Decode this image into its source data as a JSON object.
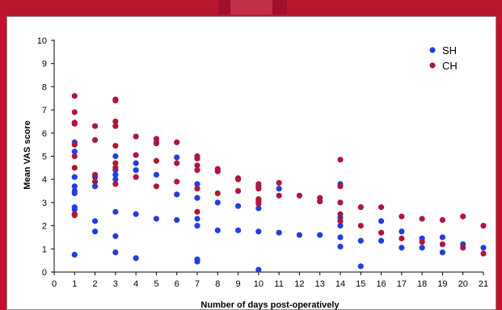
{
  "colors": {
    "background": "#c8102e",
    "sh": "#1f3fe0",
    "ch": "#b0163a"
  },
  "chart_data": {
    "type": "scatter",
    "xlabel": "Number of days post-operatively",
    "ylabel": "Mean VAS score",
    "xlim": [
      0,
      21
    ],
    "ylim": [
      0,
      10
    ],
    "xticks": [
      "0",
      "1",
      "2",
      "3",
      "4",
      "5",
      "6",
      "7",
      "8",
      "9",
      "10",
      "11",
      "12",
      "13",
      "14",
      "15",
      "16",
      "17",
      "18",
      "19",
      "20",
      "21"
    ],
    "yticks": [
      "0",
      "1",
      "2",
      "3",
      "4",
      "5",
      "6",
      "7",
      "8",
      "9",
      "10"
    ],
    "grid": false,
    "legend_position": "top-right",
    "series": [
      {
        "name": "SH",
        "color": "#1f3fe0",
        "points": [
          [
            1,
            5.6
          ],
          [
            1,
            5.2
          ],
          [
            1,
            4.1
          ],
          [
            1,
            3.7
          ],
          [
            1,
            3.5
          ],
          [
            1,
            3.4
          ],
          [
            1,
            2.8
          ],
          [
            1,
            2.7
          ],
          [
            1,
            2.5
          ],
          [
            1,
            0.75
          ],
          [
            2,
            4.1
          ],
          [
            2,
            3.7
          ],
          [
            2,
            2.2
          ],
          [
            2,
            1.75
          ],
          [
            3,
            5.0
          ],
          [
            3,
            4.4
          ],
          [
            3,
            4.2
          ],
          [
            3,
            4.0
          ],
          [
            3,
            2.6
          ],
          [
            3,
            1.55
          ],
          [
            3,
            0.85
          ],
          [
            4,
            4.7
          ],
          [
            4,
            4.4
          ],
          [
            4,
            2.5
          ],
          [
            4,
            0.6
          ],
          [
            5,
            5.6
          ],
          [
            5,
            4.2
          ],
          [
            5,
            2.3
          ],
          [
            6,
            4.95
          ],
          [
            6,
            3.35
          ],
          [
            6,
            2.25
          ],
          [
            7,
            3.8
          ],
          [
            7,
            3.2
          ],
          [
            7,
            2.3
          ],
          [
            7,
            2.0
          ],
          [
            7,
            0.55
          ],
          [
            7,
            0.45
          ],
          [
            8,
            3.0
          ],
          [
            8,
            1.8
          ],
          [
            9,
            2.85
          ],
          [
            9,
            1.8
          ],
          [
            10,
            3.7
          ],
          [
            10,
            2.75
          ],
          [
            10,
            1.75
          ],
          [
            10,
            0.1
          ],
          [
            11,
            3.6
          ],
          [
            11,
            1.7
          ],
          [
            12,
            1.6
          ],
          [
            13,
            3.05
          ],
          [
            13,
            1.6
          ],
          [
            14,
            3.8
          ],
          [
            14,
            2.35
          ],
          [
            14,
            2.0
          ],
          [
            14,
            1.5
          ],
          [
            14,
            1.1
          ],
          [
            15,
            1.35
          ],
          [
            15,
            0.25
          ],
          [
            16,
            2.2
          ],
          [
            16,
            1.35
          ],
          [
            17,
            1.75
          ],
          [
            17,
            1.05
          ],
          [
            18,
            1.45
          ],
          [
            18,
            1.05
          ],
          [
            19,
            1.5
          ],
          [
            19,
            0.85
          ],
          [
            20,
            1.2
          ],
          [
            21,
            1.05
          ]
        ]
      },
      {
        "name": "CH",
        "color": "#b0163a",
        "points": [
          [
            1,
            7.6
          ],
          [
            1,
            6.9
          ],
          [
            1,
            6.45
          ],
          [
            1,
            6.4
          ],
          [
            1,
            5.5
          ],
          [
            1,
            5.0
          ],
          [
            1,
            4.5
          ],
          [
            1,
            2.5
          ],
          [
            1,
            2.45
          ],
          [
            2,
            6.3
          ],
          [
            2,
            5.7
          ],
          [
            2,
            4.2
          ],
          [
            2,
            3.9
          ],
          [
            3,
            7.45
          ],
          [
            3,
            7.4
          ],
          [
            3,
            6.5
          ],
          [
            3,
            6.3
          ],
          [
            3,
            5.45
          ],
          [
            3,
            4.7
          ],
          [
            3,
            4.5
          ],
          [
            3,
            3.8
          ],
          [
            4,
            5.85
          ],
          [
            4,
            5.05
          ],
          [
            4,
            4.1
          ],
          [
            5,
            5.75
          ],
          [
            5,
            5.55
          ],
          [
            5,
            4.8
          ],
          [
            5,
            3.7
          ],
          [
            6,
            5.6
          ],
          [
            6,
            4.7
          ],
          [
            6,
            3.9
          ],
          [
            7,
            5.0
          ],
          [
            7,
            4.9
          ],
          [
            7,
            4.6
          ],
          [
            7,
            4.4
          ],
          [
            7,
            3.6
          ],
          [
            7,
            2.6
          ],
          [
            8,
            4.45
          ],
          [
            8,
            4.35
          ],
          [
            8,
            3.4
          ],
          [
            9,
            4.05
          ],
          [
            9,
            4.0
          ],
          [
            9,
            3.5
          ],
          [
            10,
            3.8
          ],
          [
            10,
            3.6
          ],
          [
            10,
            3.15
          ],
          [
            10,
            3.05
          ],
          [
            10,
            2.95
          ],
          [
            11,
            3.85
          ],
          [
            11,
            3.3
          ],
          [
            12,
            3.3
          ],
          [
            13,
            3.2
          ],
          [
            13,
            3.05
          ],
          [
            14,
            4.85
          ],
          [
            14,
            3.7
          ],
          [
            14,
            3.0
          ],
          [
            14,
            2.5
          ],
          [
            14,
            2.2
          ],
          [
            15,
            2.8
          ],
          [
            15,
            2.0
          ],
          [
            16,
            2.8
          ],
          [
            16,
            1.7
          ],
          [
            17,
            2.4
          ],
          [
            17,
            1.45
          ],
          [
            18,
            2.3
          ],
          [
            18,
            1.3
          ],
          [
            19,
            2.25
          ],
          [
            19,
            1.2
          ],
          [
            20,
            2.4
          ],
          [
            20,
            1.05
          ],
          [
            21,
            2.0
          ],
          [
            21,
            0.8
          ]
        ]
      }
    ]
  }
}
